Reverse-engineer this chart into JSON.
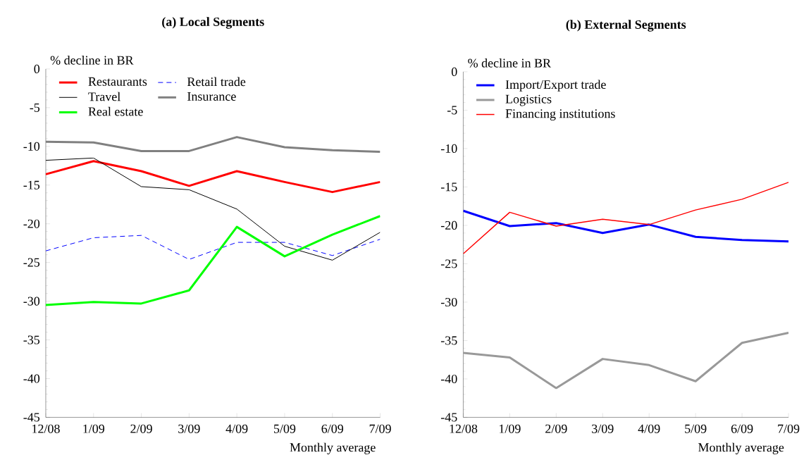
{
  "chart_data": [
    {
      "type": "line",
      "title": "(a) Local Segments",
      "ylabel": "% decline in BR",
      "xlabel": "Monthly average",
      "categories": [
        "12/08",
        "1/09",
        "2/09",
        "3/09",
        "4/09",
        "5/09",
        "6/09",
        "7/09"
      ],
      "ylim": [
        -45,
        0
      ],
      "yticks": [
        -45,
        -40,
        -35,
        -30,
        -25,
        -20,
        -15,
        -10,
        -5,
        0
      ],
      "legend": "top left",
      "line_style": "solid",
      "series": [
        {
          "name": "Restaurants",
          "color": "#ff0000",
          "values": [
            -13.6,
            -11.9,
            -13.2,
            -15.1,
            -13.2,
            -14.6,
            -15.9,
            -14.6
          ]
        },
        {
          "name": "Retail trade",
          "color": "#0000ff",
          "line_style": "dashed",
          "values": [
            -23.5,
            -21.8,
            -21.5,
            -24.6,
            -22.4,
            -22.4,
            -24.1,
            -22.0
          ]
        },
        {
          "name": "Travel",
          "color": "#000000",
          "values": [
            -11.8,
            -11.5,
            -15.2,
            -15.6,
            -18.1,
            -22.9,
            -24.7,
            -21.1
          ]
        },
        {
          "name": "Insurance",
          "color": "#808080",
          "values": [
            -9.4,
            -9.5,
            -10.6,
            -10.6,
            -8.8,
            -10.1,
            -10.5,
            -10.7
          ]
        },
        {
          "name": "Real estate",
          "color": "#00ff00",
          "values": [
            -30.5,
            -30.1,
            -30.3,
            -28.6,
            -20.4,
            -24.2,
            -21.4,
            -19.0
          ]
        }
      ]
    },
    {
      "type": "line",
      "title": "(b) External Segments",
      "ylabel": "% decline in BR",
      "xlabel": "Monthly average",
      "categories": [
        "12/08",
        "1/09",
        "2/09",
        "3/09",
        "4/09",
        "5/09",
        "6/09",
        "7/09"
      ],
      "ylim": [
        -45,
        0
      ],
      "yticks": [
        -45,
        -40,
        -35,
        -30,
        -25,
        -20,
        -15,
        -10,
        -5,
        0
      ],
      "legend": "top left",
      "line_style": "solid",
      "series": [
        {
          "name": "Import/Export trade",
          "color": "#0000ff",
          "values": [
            -18.1,
            -20.1,
            -19.7,
            -21.0,
            -19.9,
            -21.5,
            -21.9,
            -22.1
          ]
        },
        {
          "name": "Logistics",
          "color": "#999999",
          "values": [
            -36.6,
            -37.2,
            -41.2,
            -37.4,
            -38.2,
            -40.3,
            -35.3,
            -34.0
          ]
        },
        {
          "name": "Financing institutions",
          "color": "#ff0000",
          "values": [
            -23.7,
            -18.3,
            -20.1,
            -19.2,
            -19.9,
            -18.0,
            -16.6,
            -14.4
          ]
        }
      ]
    }
  ]
}
